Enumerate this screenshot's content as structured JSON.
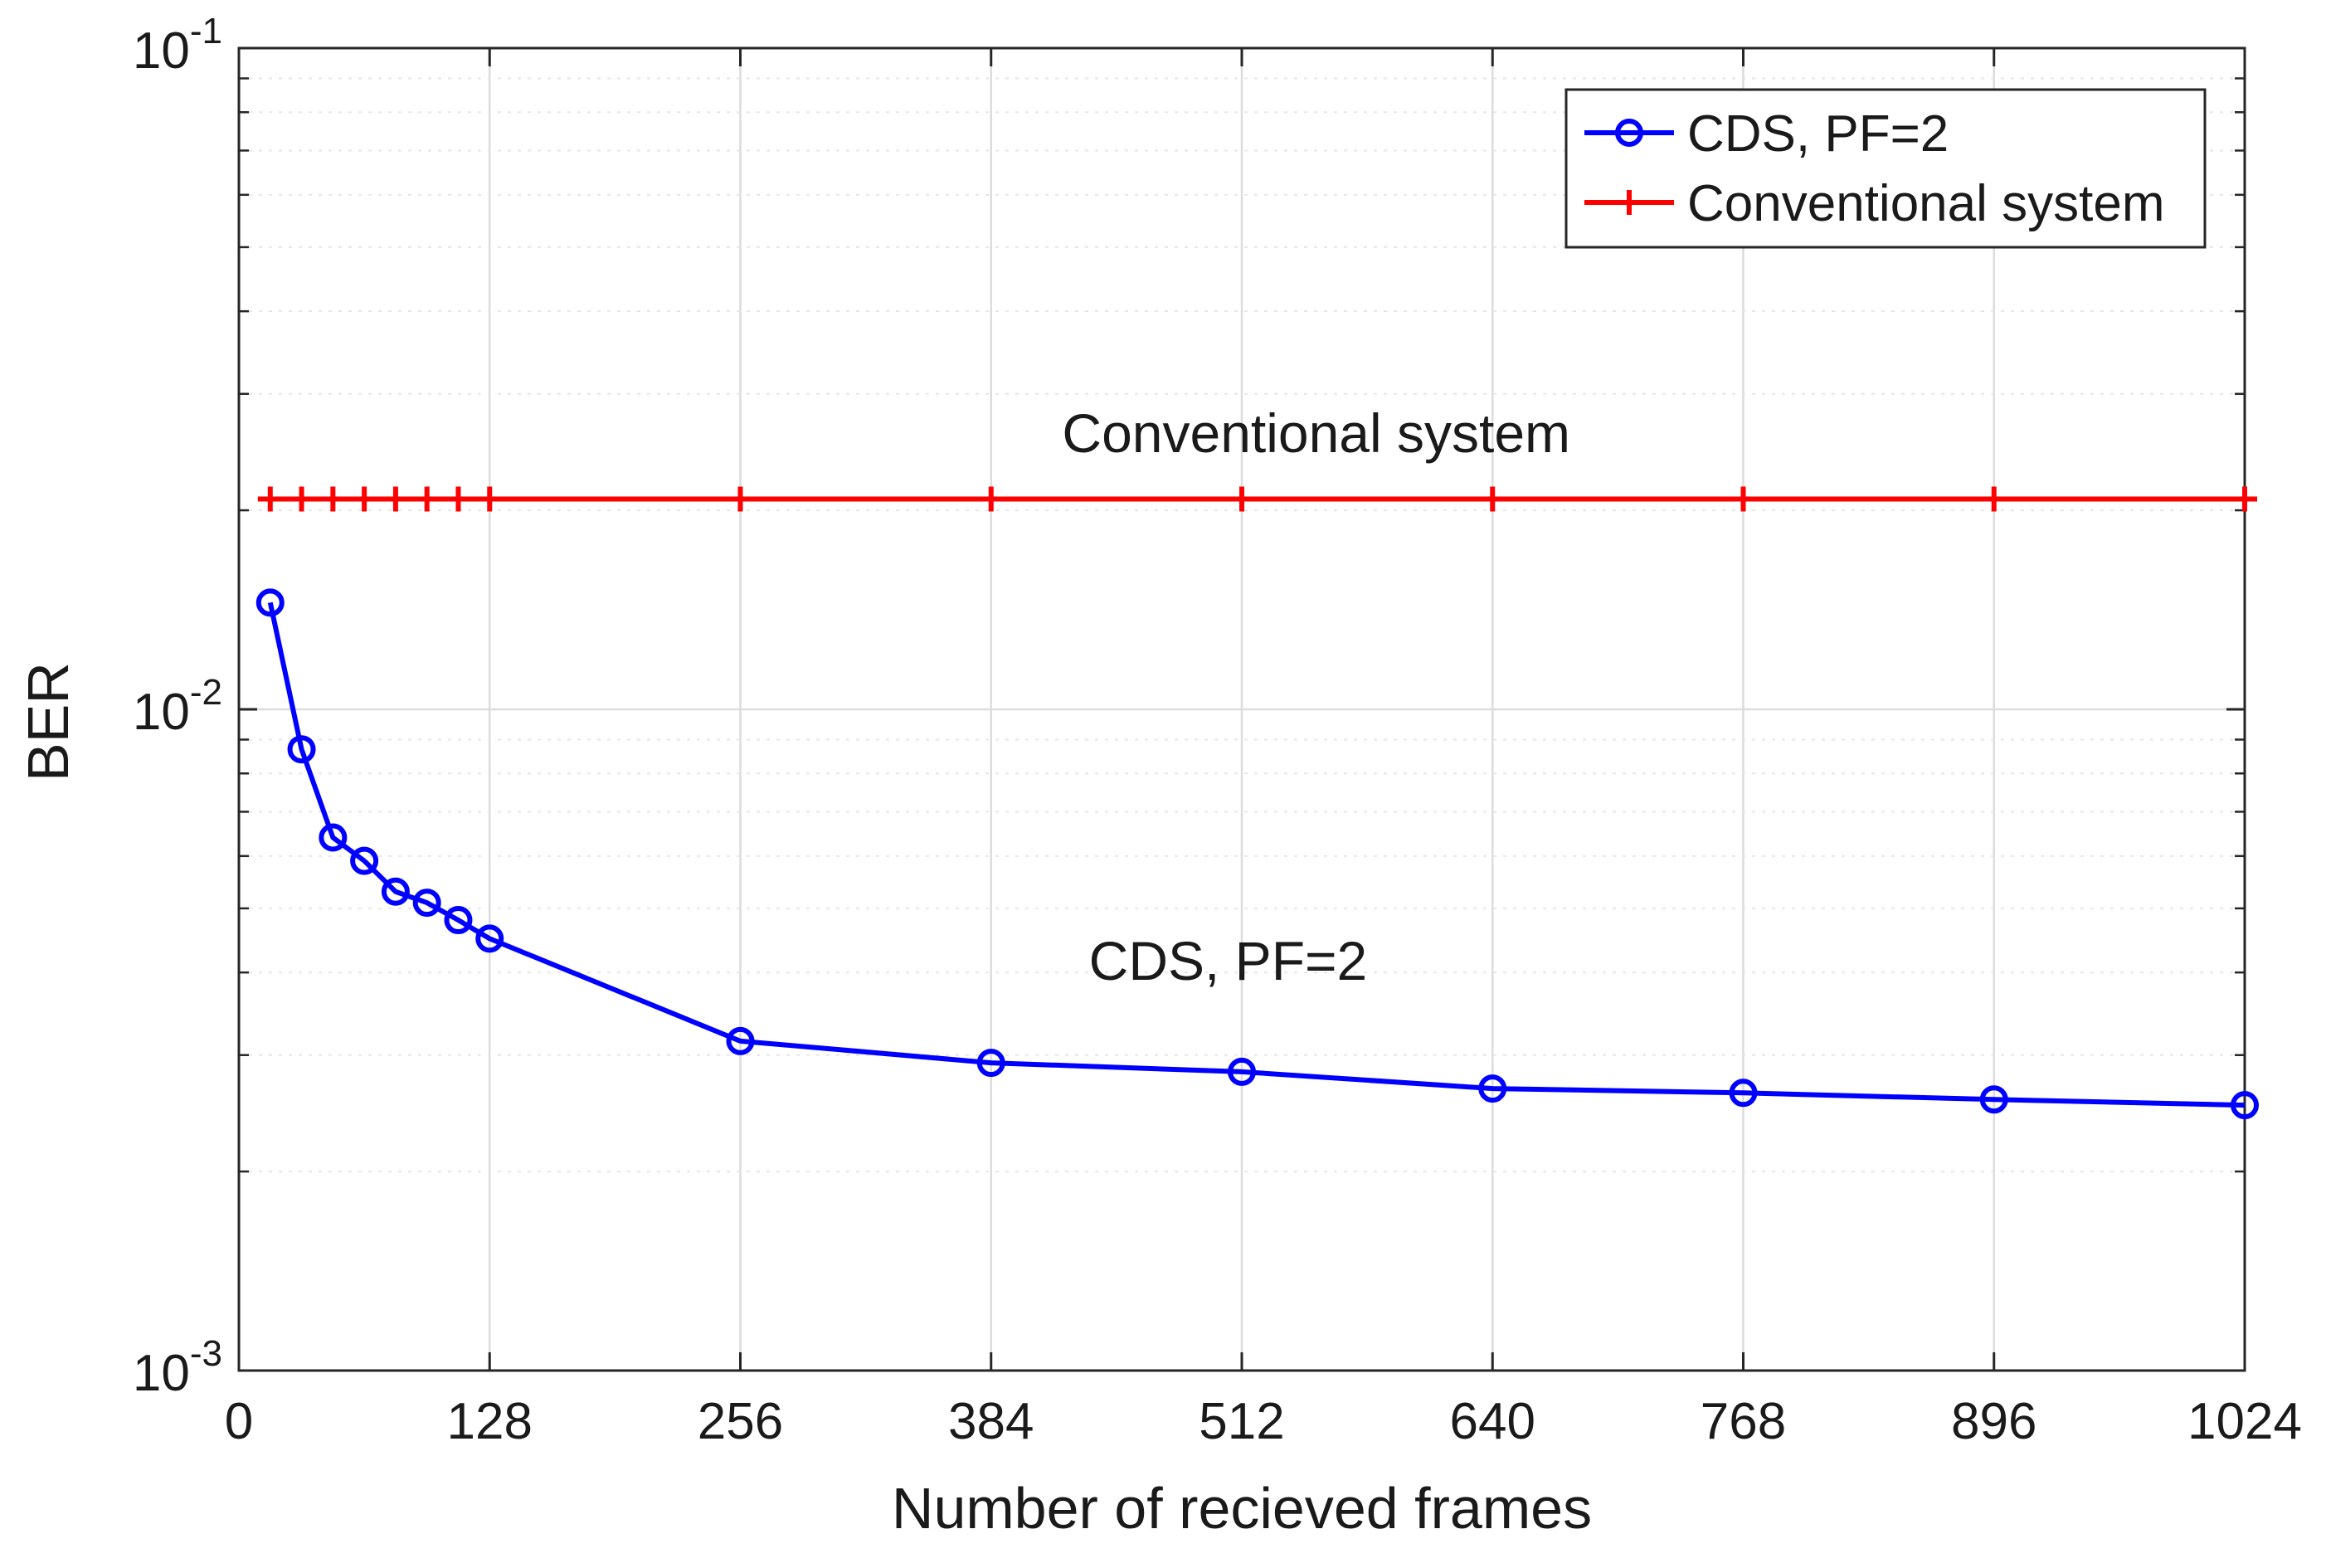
{
  "chart_data": {
    "type": "line",
    "title": "",
    "xlabel": "Number of recieved frames",
    "ylabel": "BER",
    "y_scale": "log",
    "xlim": [
      0,
      1024
    ],
    "ylim": [
      0.001,
      0.1
    ],
    "grid": true,
    "x_ticks": [
      0,
      128,
      256,
      384,
      512,
      640,
      768,
      896,
      1024
    ],
    "x_tick_labels": [
      "0",
      "128",
      "256",
      "384",
      "512",
      "640",
      "768",
      "896",
      "1024"
    ],
    "y_ticks": [
      {
        "value": 0.001,
        "base": "10",
        "exp": "-3"
      },
      {
        "value": 0.01,
        "base": "10",
        "exp": "-2"
      },
      {
        "value": 0.1,
        "base": "10",
        "exp": "-1"
      }
    ],
    "legend_position": "top-right",
    "series": [
      {
        "name": "CDS, PF=2",
        "color": "#0000ff",
        "marker": "circle",
        "x": [
          16,
          32,
          48,
          64,
          80,
          96,
          112,
          128,
          256,
          384,
          512,
          640,
          768,
          896,
          1024
        ],
        "values": [
          0.0145,
          0.0087,
          0.0064,
          0.0059,
          0.0053,
          0.0051,
          0.0048,
          0.0045,
          0.00315,
          0.00292,
          0.00283,
          0.00267,
          0.00263,
          0.00257,
          0.00252
        ]
      },
      {
        "name": "Conventional system",
        "color": "#ff0000",
        "marker": "plus",
        "x": [
          16,
          32,
          48,
          64,
          80,
          96,
          112,
          128,
          256,
          384,
          512,
          640,
          768,
          896,
          1024
        ],
        "values": [
          0.0208,
          0.0208,
          0.0208,
          0.0208,
          0.0208,
          0.0208,
          0.0208,
          0.0208,
          0.0208,
          0.0208,
          0.0208,
          0.0208,
          0.0208,
          0.0208,
          0.0208
        ]
      }
    ],
    "annotations": [
      {
        "text": "Conventional system",
        "x": 550,
        "y": 0.0245
      },
      {
        "text": "CDS, PF=2",
        "x": 505,
        "y": 0.0039
      }
    ]
  }
}
